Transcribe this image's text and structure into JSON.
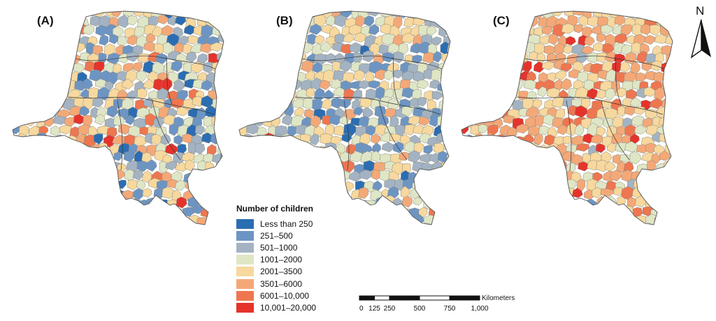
{
  "panels": [
    {
      "label": "(A)",
      "variant": "a"
    },
    {
      "label": "(B)",
      "variant": "b"
    },
    {
      "label": "(C)",
      "variant": "c"
    }
  ],
  "north_arrow": {
    "letter": "N"
  },
  "legend": {
    "title": "Number of children",
    "classes": [
      {
        "label": "Less than 250",
        "color": "#2b6db3"
      },
      {
        "label": "251–500",
        "color": "#6d95c4"
      },
      {
        "label": "501–1000",
        "color": "#a3b3c3"
      },
      {
        "label": "1001–2000",
        "color": "#dfe6c6"
      },
      {
        "label": "2001–3500",
        "color": "#f7d89e"
      },
      {
        "label": "3501–6000",
        "color": "#f4a878"
      },
      {
        "label": "6001–10,000",
        "color": "#ee7650"
      },
      {
        "label": "10,001–20,000",
        "color": "#e5332c"
      }
    ]
  },
  "scale_bar": {
    "unit": "Kilometers",
    "ticks": [
      "0",
      "125",
      "250",
      "500",
      "750",
      "1,000"
    ]
  }
}
